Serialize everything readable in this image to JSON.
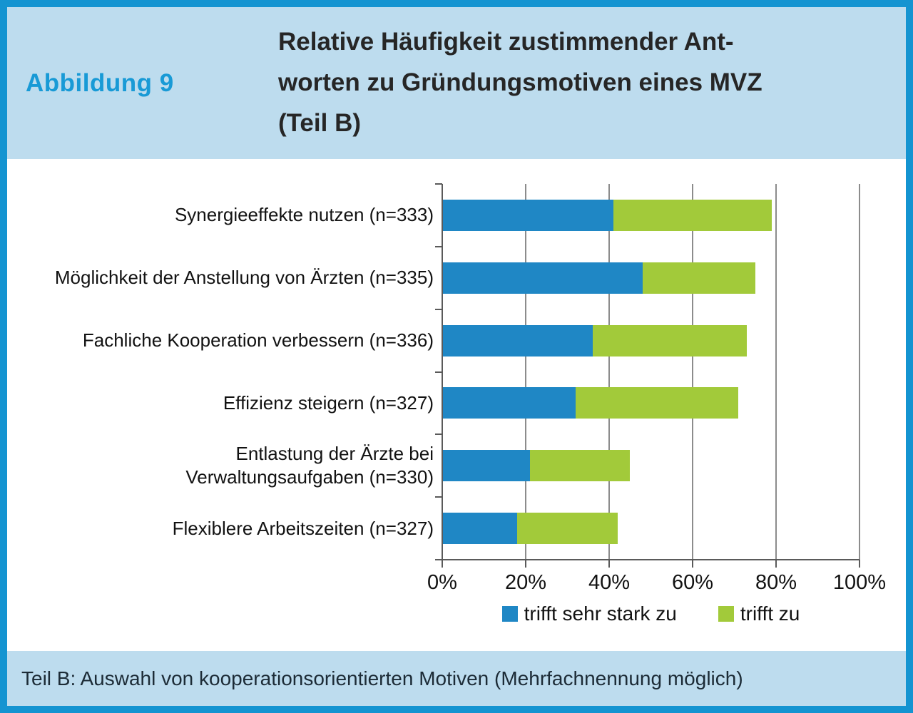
{
  "figure": {
    "label": "Abbildung 9",
    "title": "Relative Häufigkeit zustimmender Ant-\nworten zu Gründungsmotiven eines MVZ\n(Teil B)",
    "caption": "Teil B: Auswahl von kooperationsorientierten Motiven (Mehrfachnennung möglich)"
  },
  "chart_data": {
    "type": "bar",
    "orientation": "horizontal",
    "stacked": true,
    "title": "Relative Häufigkeit zustimmender Antworten zu Gründungsmotiven eines MVZ (Teil B)",
    "categories": [
      "Synergieeffekte nutzen (n=333)",
      "Möglichkeit der Anstellung von Ärzten (n=335)",
      "Fachliche Kooperation verbessern (n=336)",
      "Effizienz steigern (n=327)",
      "Entlastung der Ärzte bei\nVerwaltungsaufgaben (n=330)",
      "Flexiblere Arbeitszeiten (n=327)"
    ],
    "series": [
      {
        "name": "trifft sehr stark zu",
        "color": "#1f87c5",
        "values": [
          41,
          48,
          36,
          32,
          21,
          18
        ]
      },
      {
        "name": "trifft zu",
        "color": "#a2ca3a",
        "values": [
          38,
          27,
          37,
          39,
          24,
          24
        ]
      }
    ],
    "x_ticks": [
      "0%",
      "20%",
      "40%",
      "60%",
      "80%",
      "100%"
    ],
    "xlim": [
      0,
      100
    ],
    "grid": true,
    "legend_position": "bottom",
    "unit": "percent"
  },
  "colors": {
    "border": "#1494d1",
    "band": "#bddcee",
    "accent_label": "#189ad6",
    "bar_blue": "#1f87c5",
    "bar_green": "#a2ca3a",
    "gridline": "#8c8c8c",
    "axis": "#5a5a5a"
  }
}
